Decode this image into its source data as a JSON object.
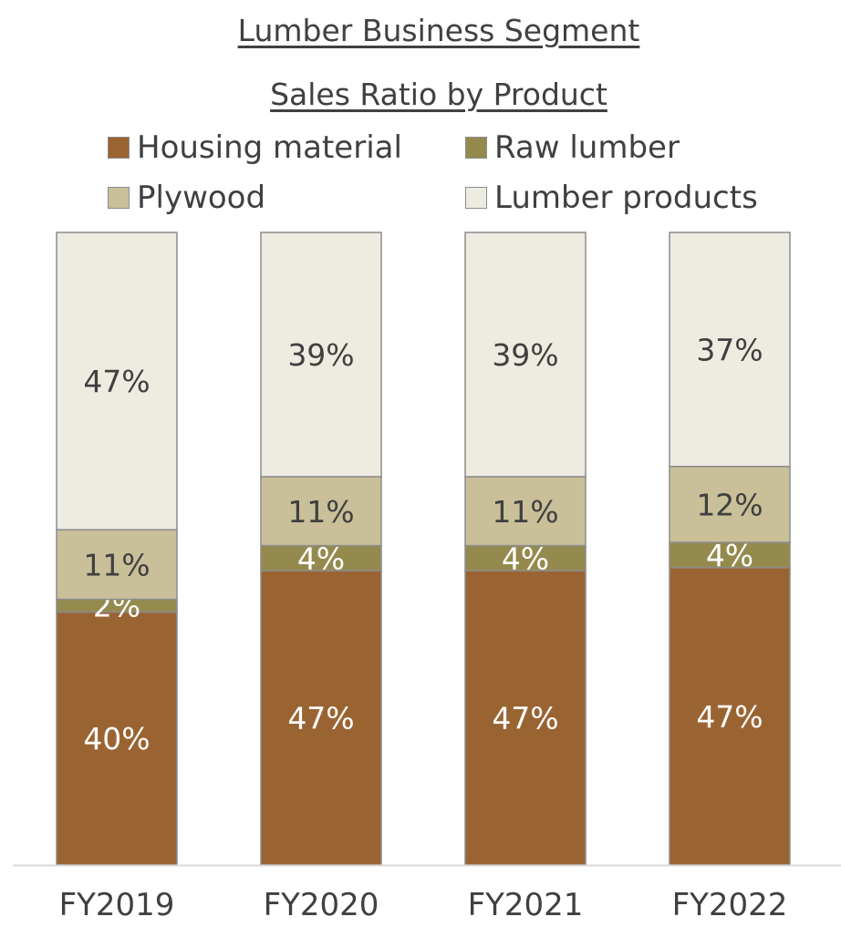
{
  "chart_data": {
    "type": "bar",
    "stacked": true,
    "title": "Lumber Business Segment",
    "subtitle": "Sales Ratio by Product",
    "categories": [
      "FY2019",
      "FY2020",
      "FY2021",
      "FY2022"
    ],
    "series": [
      {
        "name": "Housing material",
        "values": [
          40,
          47,
          47,
          47
        ],
        "labels": [
          "40%",
          "47%",
          "47%",
          "47%"
        ],
        "color": "#9a6432",
        "text_color": "#ffffff"
      },
      {
        "name": "Raw lumber",
        "values": [
          2,
          4,
          4,
          4
        ],
        "labels": [
          "2%",
          "4%",
          "4%",
          "4%"
        ],
        "color": "#958a4e",
        "text_color": "#ffffff"
      },
      {
        "name": "Plywood",
        "values": [
          11,
          11,
          11,
          12
        ],
        "labels": [
          "11%",
          "11%",
          "11%",
          "12%"
        ],
        "color": "#c9bf99",
        "text_color": "#404040"
      },
      {
        "name": "Lumber products",
        "values": [
          47,
          39,
          39,
          37
        ],
        "labels": [
          "47%",
          "39%",
          "39%",
          "37%"
        ],
        "color": "#eeebe0",
        "text_color": "#404040"
      }
    ],
    "legend_position": "top",
    "grid": false,
    "ylim": [
      0,
      100
    ]
  }
}
